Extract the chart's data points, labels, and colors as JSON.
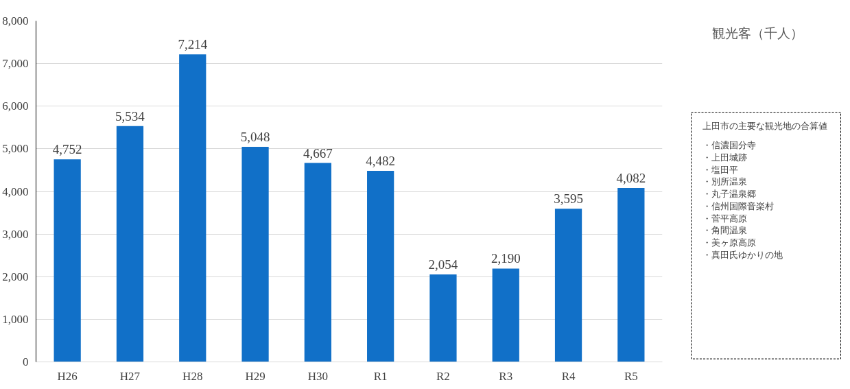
{
  "chart_data": {
    "type": "bar",
    "categories": [
      "H26",
      "H27",
      "H28",
      "H29",
      "H30",
      "R1",
      "R2",
      "R3",
      "R4",
      "R5"
    ],
    "series": [
      {
        "name": "観光客（千人）",
        "color": "#1170c8",
        "values": [
          4752,
          5534,
          7214,
          5048,
          4667,
          4482,
          2054,
          2190,
          3595,
          4082
        ],
        "value_labels": [
          "4,752",
          "5,534",
          "7,214",
          "5,048",
          "4,667",
          "4,482",
          "2,054",
          "2,190",
          "3,595",
          "4,082"
        ]
      }
    ],
    "ylim": [
      0,
      8000
    ],
    "yticks": [
      0,
      {
        "value": 1000,
        "label": "1,000"
      },
      {
        "value": 2000,
        "label": "2,000"
      },
      {
        "value": 3000,
        "label": "3,000"
      },
      {
        "value": 4000,
        "label": "4,000"
      },
      {
        "value": 5000,
        "label": "5,000"
      },
      {
        "value": 6000,
        "label": "6,000"
      },
      {
        "value": 7000,
        "label": "7,000"
      },
      {
        "value": 8000,
        "label": "8,000"
      }
    ],
    "grid": "y",
    "legend": "right",
    "annotations": [
      "上田市の主要な観光地の合算値",
      "・信濃国分寺",
      "・上田城跡",
      "・塩田平",
      "・別所温泉",
      "・丸子温泉郷",
      "・信州国際音楽村",
      "・菅平高原",
      "・角間温泉",
      "・美ヶ原高原",
      "・真田氏ゆかりの地"
    ]
  }
}
